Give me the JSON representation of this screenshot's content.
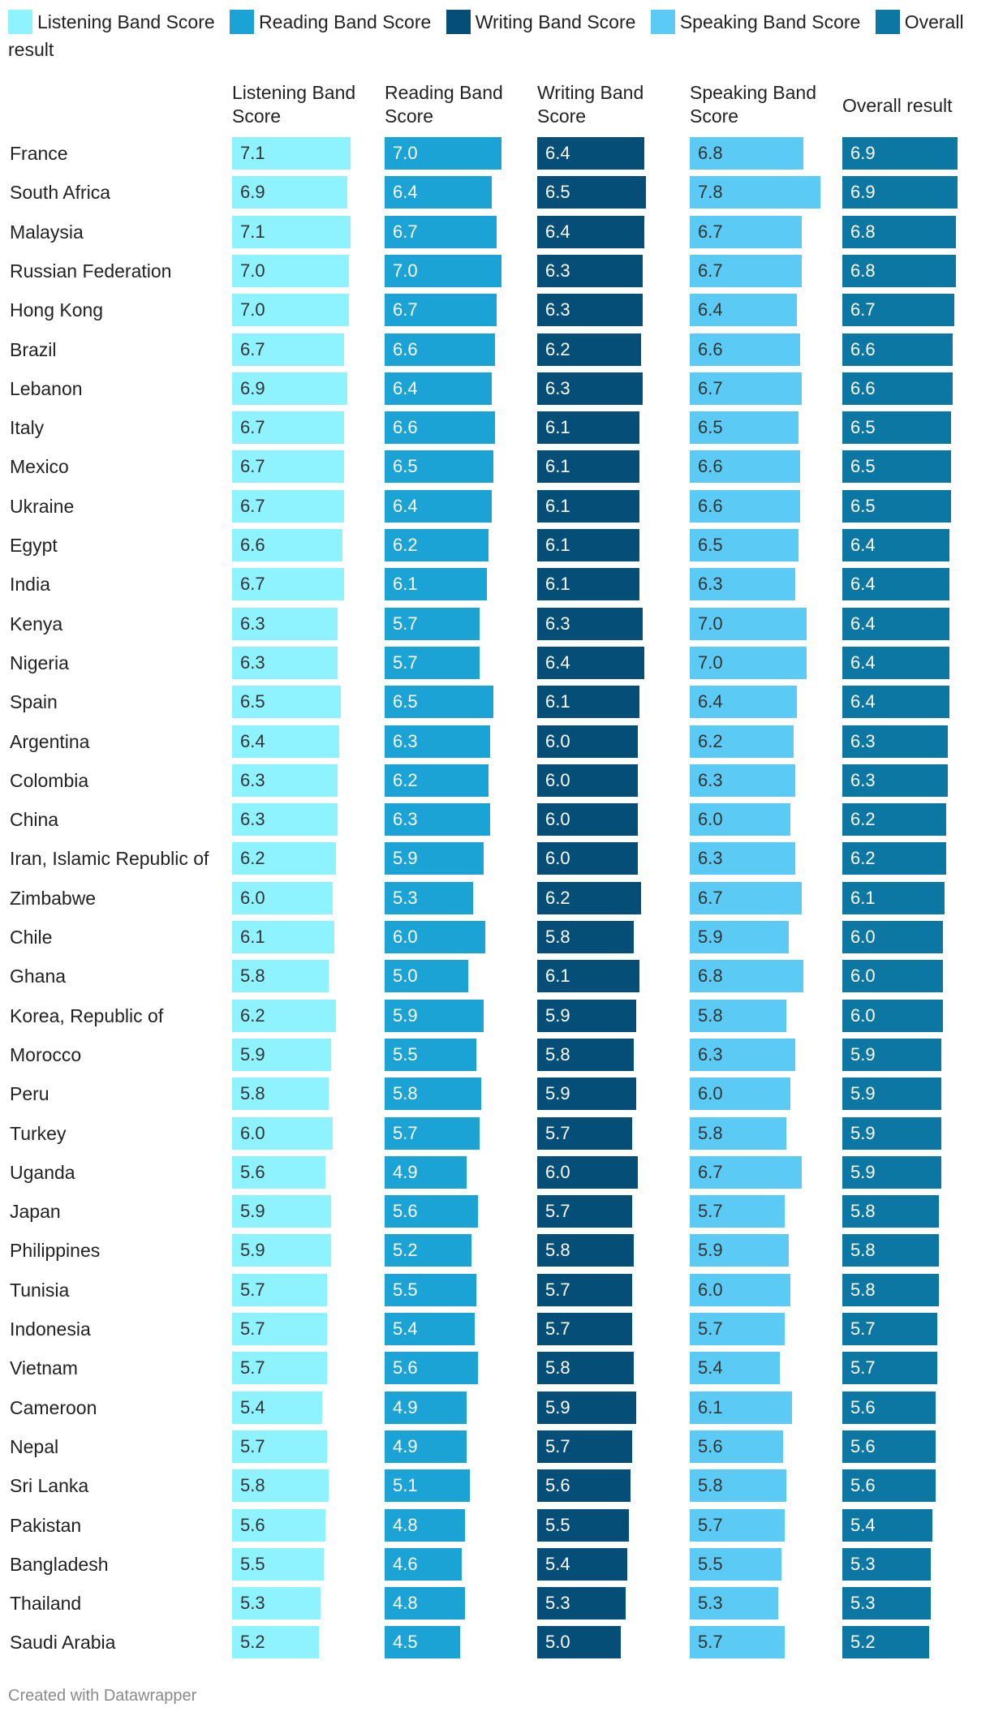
{
  "legend": [
    {
      "label": "Listening Band Score",
      "color": "#8ef3ff"
    },
    {
      "label": "Reading Band Score",
      "color": "#1aa3d4"
    },
    {
      "label": "Writing Band Score",
      "color": "#044e78"
    },
    {
      "label": "Speaking Band Score",
      "color": "#5bcaf4"
    },
    {
      "label": "Overall result",
      "color": "#0b77a2"
    }
  ],
  "footer": "Created with Datawrapper",
  "chart_data": {
    "type": "bar",
    "orientation": "horizontal",
    "layout": "split-columns",
    "columns": [
      "Listening Band Score",
      "Reading Band Score",
      "Writing Band Score",
      "Speaking Band Score",
      "Overall result"
    ],
    "xlim": [
      0,
      8
    ],
    "categories": [
      "France",
      "South Africa",
      "Malaysia",
      "Russian Federation",
      "Hong Kong",
      "Brazil",
      "Lebanon",
      "Italy",
      "Mexico",
      "Ukraine",
      "Egypt",
      "India",
      "Kenya",
      "Nigeria",
      "Spain",
      "Argentina",
      "Colombia",
      "China",
      "Iran, Islamic Republic of",
      "Zimbabwe",
      "Chile",
      "Ghana",
      "Korea, Republic of",
      "Morocco",
      "Peru",
      "Turkey",
      "Uganda",
      "Japan",
      "Philippines",
      "Tunisia",
      "Indonesia",
      "Vietnam",
      "Cameroon",
      "Nepal",
      "Sri Lanka",
      "Pakistan",
      "Bangladesh",
      "Thailand",
      "Saudi Arabia"
    ],
    "series": [
      {
        "name": "Listening Band Score",
        "color": "#8ef3ff",
        "text_color": "#333333",
        "values": [
          "7.1",
          "6.9",
          "7.1",
          "7.0",
          "7.0",
          "6.7",
          "6.9",
          "6.7",
          "6.7",
          "6.7",
          "6.6",
          "6.7",
          "6.3",
          "6.3",
          "6.5",
          "6.4",
          "6.3",
          "6.3",
          "6.2",
          "6.0",
          "6.1",
          "5.8",
          "6.2",
          "5.9",
          "5.8",
          "6.0",
          "5.6",
          "5.9",
          "5.9",
          "5.7",
          "5.7",
          "5.7",
          "5.4",
          "5.7",
          "5.8",
          "5.6",
          "5.5",
          "5.3",
          "5.2"
        ]
      },
      {
        "name": "Reading Band Score",
        "color": "#1aa3d4",
        "text_color": "#ffffff",
        "values": [
          "7.0",
          "6.4",
          "6.7",
          "7.0",
          "6.7",
          "6.6",
          "6.4",
          "6.6",
          "6.5",
          "6.4",
          "6.2",
          "6.1",
          "5.7",
          "5.7",
          "6.5",
          "6.3",
          "6.2",
          "6.3",
          "5.9",
          "5.3",
          "6.0",
          "5.0",
          "5.9",
          "5.5",
          "5.8",
          "5.7",
          "4.9",
          "5.6",
          "5.2",
          "5.5",
          "5.4",
          "5.6",
          "4.9",
          "4.9",
          "5.1",
          "4.8",
          "4.6",
          "4.8",
          "4.5"
        ]
      },
      {
        "name": "Writing Band Score",
        "color": "#044e78",
        "text_color": "#ffffff",
        "values": [
          "6.4",
          "6.5",
          "6.4",
          "6.3",
          "6.3",
          "6.2",
          "6.3",
          "6.1",
          "6.1",
          "6.1",
          "6.1",
          "6.1",
          "6.3",
          "6.4",
          "6.1",
          "6.0",
          "6.0",
          "6.0",
          "6.0",
          "6.2",
          "5.8",
          "6.1",
          "5.9",
          "5.8",
          "5.9",
          "5.7",
          "6.0",
          "5.7",
          "5.8",
          "5.7",
          "5.7",
          "5.8",
          "5.9",
          "5.7",
          "5.6",
          "5.5",
          "5.4",
          "5.3",
          "5.0"
        ]
      },
      {
        "name": "Speaking Band Score",
        "color": "#5bcaf4",
        "text_color": "#333333",
        "values": [
          "6.8",
          "7.8",
          "6.7",
          "6.7",
          "6.4",
          "6.6",
          "6.7",
          "6.5",
          "6.6",
          "6.6",
          "6.5",
          "6.3",
          "7.0",
          "7.0",
          "6.4",
          "6.2",
          "6.3",
          "6.0",
          "6.3",
          "6.7",
          "5.9",
          "6.8",
          "5.8",
          "6.3",
          "6.0",
          "5.8",
          "6.7",
          "5.7",
          "5.9",
          "6.0",
          "5.7",
          "5.4",
          "6.1",
          "5.6",
          "5.8",
          "5.7",
          "5.5",
          "5.3",
          "5.7"
        ]
      },
      {
        "name": "Overall result",
        "color": "#0b77a2",
        "text_color": "#ffffff",
        "values": [
          "6.9",
          "6.9",
          "6.8",
          "6.8",
          "6.7",
          "6.6",
          "6.6",
          "6.5",
          "6.5",
          "6.5",
          "6.4",
          "6.4",
          "6.4",
          "6.4",
          "6.4",
          "6.3",
          "6.3",
          "6.2",
          "6.2",
          "6.1",
          "6.0",
          "6.0",
          "6.0",
          "5.9",
          "5.9",
          "5.9",
          "5.9",
          "5.8",
          "5.8",
          "5.8",
          "5.7",
          "5.7",
          "5.6",
          "5.6",
          "5.6",
          "5.4",
          "5.3",
          "5.3",
          "5.2"
        ]
      }
    ]
  }
}
